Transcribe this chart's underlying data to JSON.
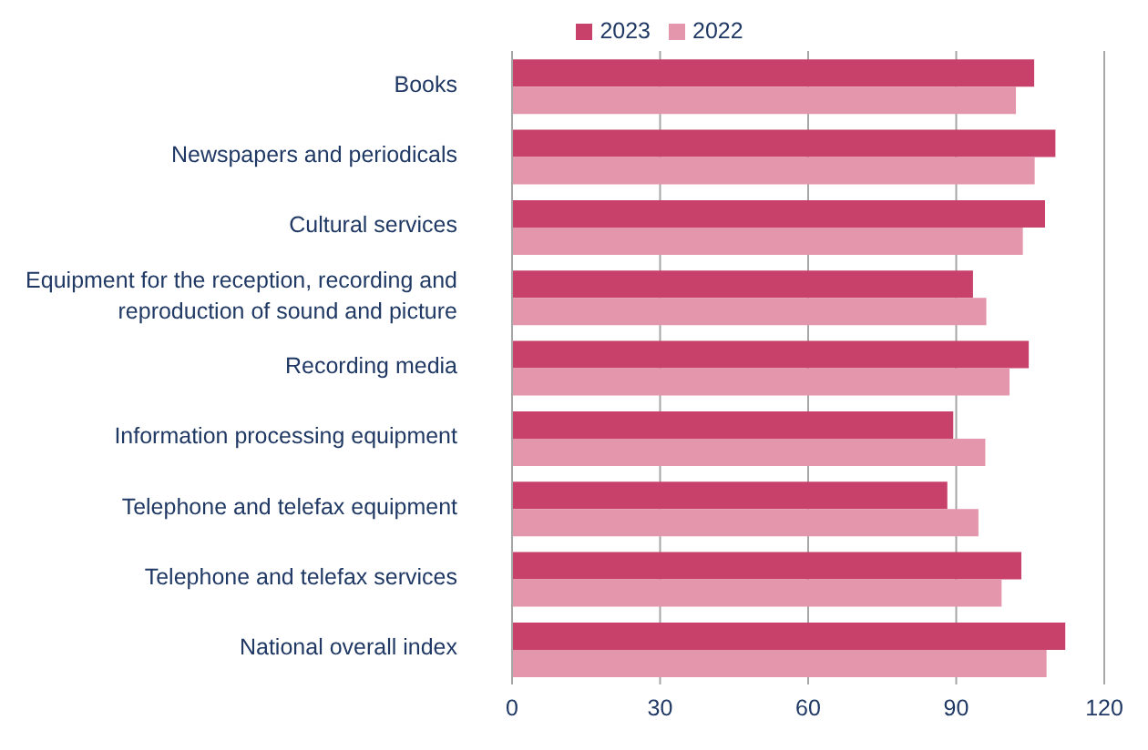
{
  "chart_data": {
    "type": "bar",
    "orientation": "horizontal",
    "categories": [
      "Books",
      "Newspapers and periodicals",
      "Cultural services",
      "Equipment for the reception, recording and reproduction of sound and picture",
      "Recording media",
      "Information processing equipment",
      "Telephone and telefax equipment",
      "Telephone and telefax services",
      "National overall index"
    ],
    "series": [
      {
        "name": "2023",
        "color": "#c8416a",
        "values": [
          105.8,
          110.1,
          108.0,
          93.4,
          104.7,
          89.4,
          88.2,
          103.2,
          112.1
        ]
      },
      {
        "name": "2022",
        "color": "#e396ac",
        "values": [
          102.1,
          105.9,
          103.5,
          96.1,
          100.8,
          95.9,
          94.5,
          99.2,
          108.3
        ]
      }
    ],
    "xlim": [
      0,
      120
    ],
    "xticks": [
      0,
      30,
      60,
      90,
      120
    ],
    "grid": "x",
    "legend": "top"
  }
}
